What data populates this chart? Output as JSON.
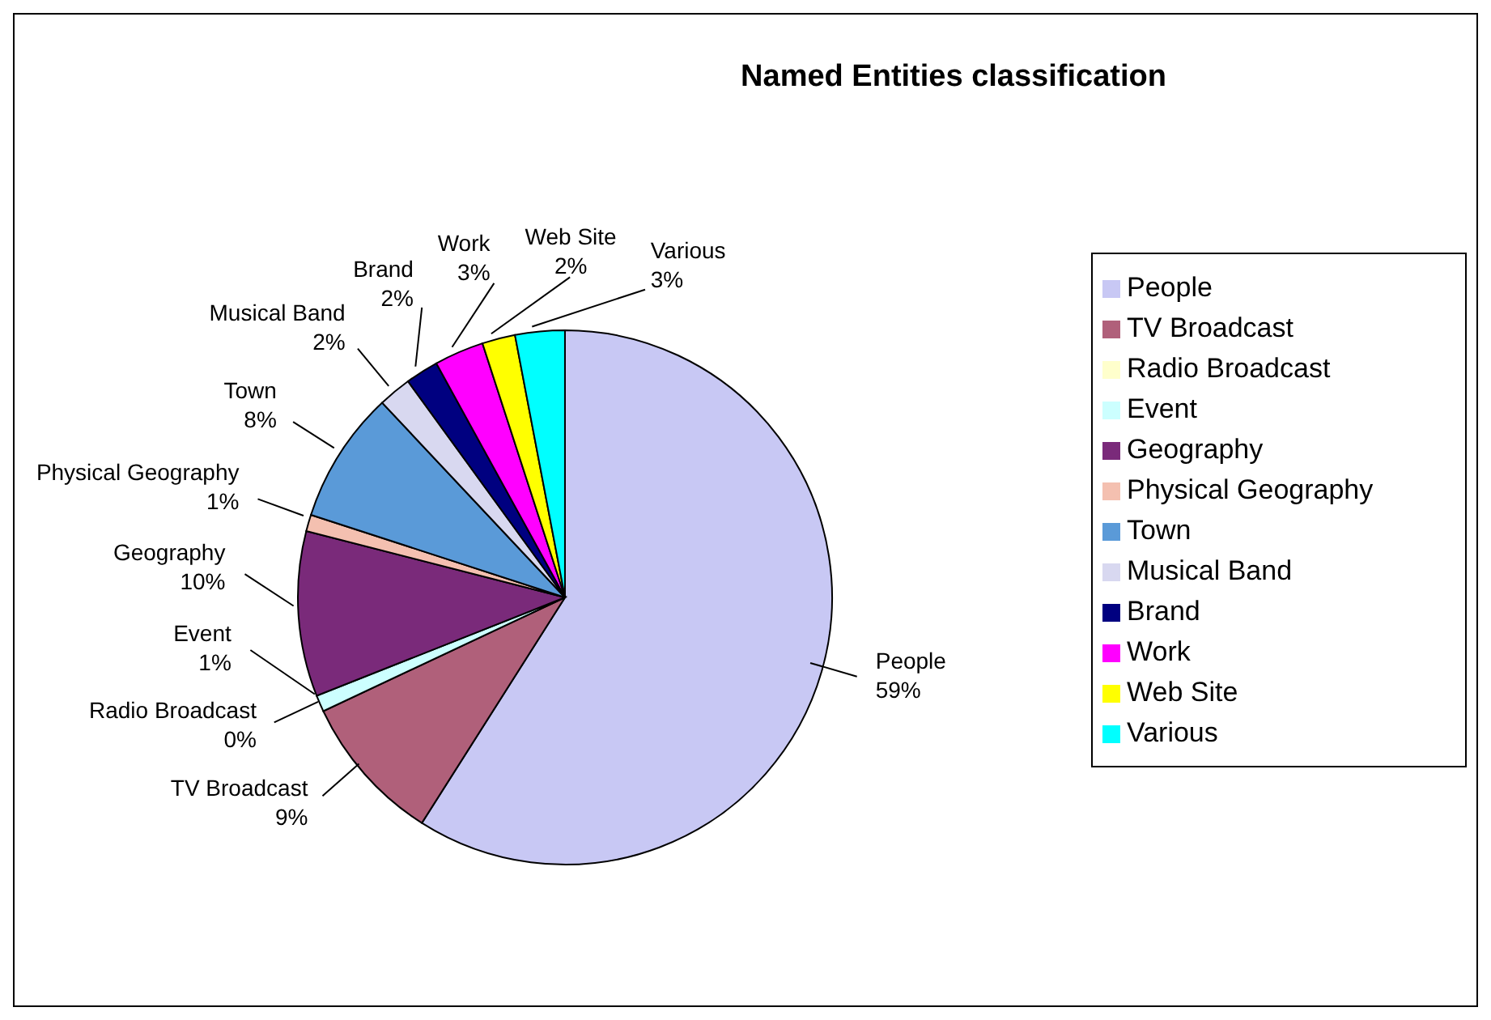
{
  "chart_data": {
    "type": "pie",
    "title": "Named Entities classification",
    "categories": [
      "People",
      "TV Broadcast",
      "Radio Broadcast",
      "Event",
      "Geography",
      "Physical Geography",
      "Town",
      "Musical Band",
      "Brand",
      "Work",
      "Web Site",
      "Various"
    ],
    "values": [
      59,
      9,
      0,
      1,
      10,
      1,
      8,
      2,
      2,
      3,
      2,
      3
    ],
    "value_labels": [
      "59%",
      "9%",
      "0%",
      "1%",
      "10%",
      "1%",
      "8%",
      "2%",
      "2%",
      "3%",
      "2%",
      "3%"
    ],
    "colors": [
      "#c8c8f4",
      "#b0607a",
      "#ffffcc",
      "#ccffff",
      "#7a2a7a",
      "#f4c0b0",
      "#5a9ad8",
      "#d8d8f0",
      "#000080",
      "#ff00ff",
      "#ffff00",
      "#00ffff"
    ],
    "legend": "right"
  }
}
